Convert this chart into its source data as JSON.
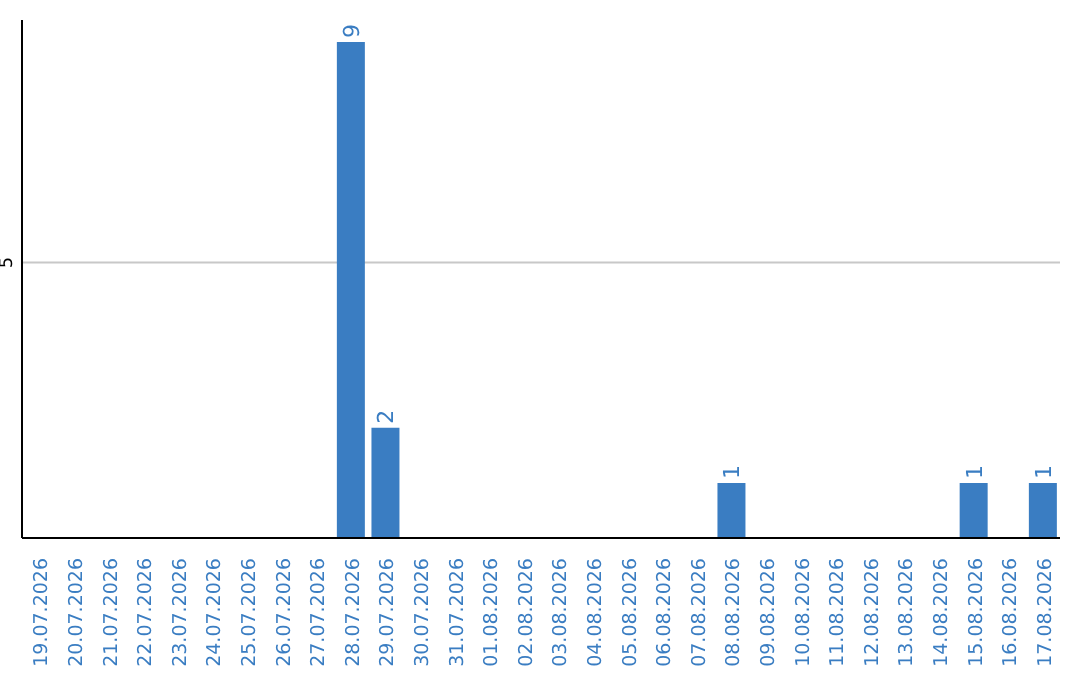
{
  "chart_data": {
    "type": "bar",
    "categories": [
      "19.07.2026",
      "20.07.2026",
      "21.07.2026",
      "22.07.2026",
      "23.07.2026",
      "24.07.2026",
      "25.07.2026",
      "26.07.2026",
      "27.07.2026",
      "28.07.2026",
      "29.07.2026",
      "30.07.2026",
      "31.07.2026",
      "01.08.2026",
      "02.08.2026",
      "03.08.2026",
      "04.08.2026",
      "05.08.2026",
      "06.08.2026",
      "07.08.2026",
      "08.08.2026",
      "09.08.2026",
      "10.08.2026",
      "11.08.2026",
      "12.08.2026",
      "13.08.2026",
      "14.08.2026",
      "15.08.2026",
      "16.08.2026",
      "17.08.2026"
    ],
    "values": [
      0,
      0,
      0,
      0,
      0,
      0,
      0,
      0,
      0,
      9,
      2,
      0,
      0,
      0,
      0,
      0,
      0,
      0,
      0,
      0,
      1,
      0,
      0,
      0,
      0,
      0,
      0,
      1,
      0,
      1
    ],
    "value_labels": [
      null,
      null,
      null,
      null,
      null,
      null,
      null,
      null,
      null,
      "9",
      "2",
      null,
      null,
      null,
      null,
      null,
      null,
      null,
      null,
      null,
      "1",
      null,
      null,
      null,
      null,
      null,
      null,
      "1",
      null,
      "1"
    ],
    "color": "#3a7dc2",
    "ylim": [
      0,
      9.4
    ],
    "yticks": [
      5
    ],
    "grid": "y",
    "legend": false
  }
}
